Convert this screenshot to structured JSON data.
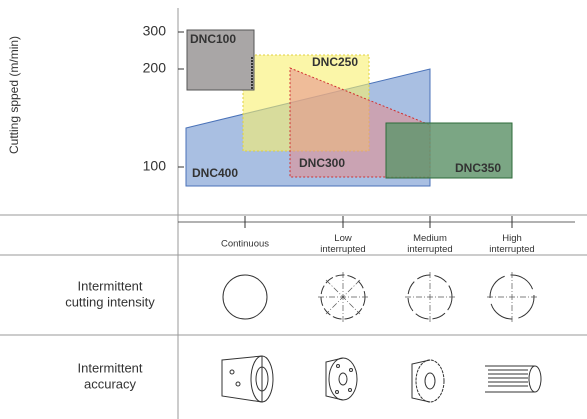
{
  "axis": {
    "label": "Cutting spped (m/min)",
    "ticks": [
      300,
      200,
      100
    ]
  },
  "regions": [
    {
      "label": "DNC100"
    },
    {
      "label": "DNC250"
    },
    {
      "label": "DNC300"
    },
    {
      "label": "DNC350"
    },
    {
      "label": "DNC400"
    }
  ],
  "intermittency": {
    "levels": [
      {
        "lines": [
          "Continuous"
        ]
      },
      {
        "lines": [
          "Low",
          "interrupted"
        ]
      },
      {
        "lines": [
          "Medium",
          "interrupted"
        ]
      },
      {
        "lines": [
          "High",
          "interrupted"
        ]
      }
    ]
  },
  "rows": [
    {
      "lines": [
        "Intermittent",
        "cutting intensity"
      ]
    },
    {
      "lines": [
        "Intermittent",
        "accuracy"
      ]
    }
  ]
}
